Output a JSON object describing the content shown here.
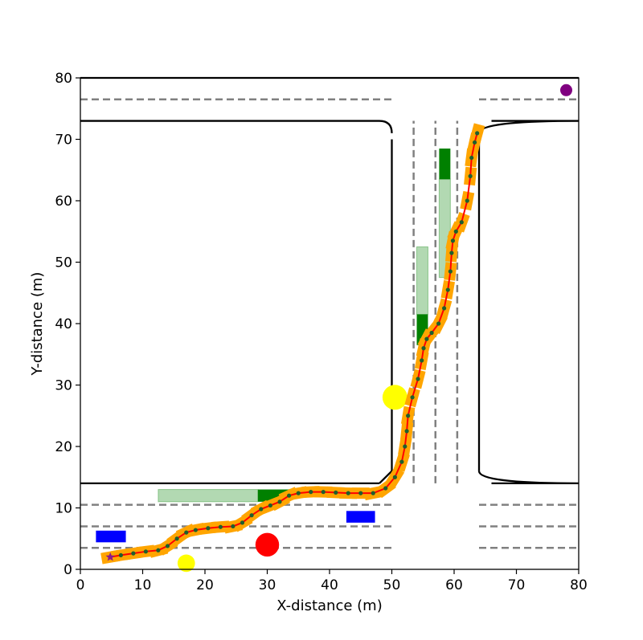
{
  "chart_data": {
    "type": "scatter",
    "title": "",
    "xlabel": "X-distance (m)",
    "ylabel": "Y-distance (m)",
    "xlim": [
      0,
      80
    ],
    "ylim": [
      0,
      80
    ],
    "xticks": [
      "0",
      "10",
      "20",
      "30",
      "40",
      "50",
      "60",
      "70",
      "80"
    ],
    "yticks": [
      "0",
      "10",
      "20",
      "30",
      "40",
      "50",
      "60",
      "70",
      "80"
    ],
    "grid": false,
    "legend": "none",
    "road_edges": [
      {
        "points": [
          [
            0,
            73
          ],
          [
            48,
            73
          ]
        ],
        "corner": [
          50,
          71
        ]
      },
      {
        "points": [
          [
            50,
            70
          ],
          [
            50,
            16
          ]
        ],
        "corner": [
          48,
          14
        ]
      },
      {
        "points": [
          [
            0,
            14
          ],
          [
            48,
            14
          ]
        ]
      },
      {
        "points": [
          [
            64,
            70
          ],
          [
            64,
            16
          ]
        ]
      },
      {
        "points": [
          [
            66,
            73
          ],
          [
            80,
            73
          ]
        ],
        "corner": [
          64,
          71
        ]
      },
      {
        "points": [
          [
            66,
            14
          ],
          [
            80,
            14
          ]
        ],
        "corner": [
          64,
          16
        ]
      },
      {
        "points": [
          [
            0,
            80
          ],
          [
            80,
            80
          ]
        ]
      }
    ],
    "lane_dividers": [
      {
        "points": [
          [
            0,
            76.5
          ],
          [
            50,
            76.5
          ]
        ]
      },
      {
        "points": [
          [
            64,
            76.5
          ],
          [
            80,
            76.5
          ]
        ]
      },
      {
        "points": [
          [
            0,
            10.5
          ],
          [
            50,
            10.5
          ]
        ]
      },
      {
        "points": [
          [
            64,
            10.5
          ],
          [
            80,
            10.5
          ]
        ]
      },
      {
        "points": [
          [
            0,
            7
          ],
          [
            50,
            7
          ]
        ]
      },
      {
        "points": [
          [
            64,
            7
          ],
          [
            80,
            7
          ]
        ]
      },
      {
        "points": [
          [
            0,
            3.5
          ],
          [
            50,
            3.5
          ]
        ]
      },
      {
        "points": [
          [
            64,
            3.5
          ],
          [
            80,
            3.5
          ]
        ]
      },
      {
        "points": [
          [
            53.5,
            14
          ],
          [
            53.5,
            73
          ]
        ]
      },
      {
        "points": [
          [
            57,
            14
          ],
          [
            57,
            73
          ]
        ]
      },
      {
        "points": [
          [
            60.5,
            14
          ],
          [
            60.5,
            73
          ]
        ]
      }
    ],
    "vehicles_blue": [
      {
        "x0": 2.5,
        "x1": 7.3,
        "y0": 4.4,
        "y1": 6.3
      },
      {
        "x0": 42.7,
        "x1": 47.3,
        "y0": 7.6,
        "y1": 9.5
      }
    ],
    "vehicles_green": [
      {
        "x0": 28.5,
        "x1": 33.5,
        "y0": 11.0,
        "y1": 13.0
      },
      {
        "x0": 54.0,
        "x1": 55.8,
        "y0": 36.5,
        "y1": 41.5
      },
      {
        "x0": 57.6,
        "x1": 59.4,
        "y0": 63.5,
        "y1": 68.5
      }
    ],
    "predictions_green": [
      {
        "x0": 12.5,
        "x1": 28.5,
        "y0": 11.0,
        "y1": 13.0
      },
      {
        "x0": 54.0,
        "x1": 55.8,
        "y0": 41.5,
        "y1": 52.5
      },
      {
        "x0": 57.6,
        "x1": 59.4,
        "y0": 47.5,
        "y1": 63.5
      }
    ],
    "obstacles": [
      {
        "x": 30,
        "y": 4,
        "r": 1.9,
        "color": "#ff0000"
      },
      {
        "x": 17,
        "y": 1,
        "r": 1.4,
        "color": "#ffff00"
      },
      {
        "x": 50.5,
        "y": 28,
        "r": 2.0,
        "color": "#ffff00"
      }
    ],
    "goal": {
      "x": 78,
      "y": 78,
      "color": "#800080"
    },
    "start": {
      "x": 4.8,
      "y": 2.0
    },
    "trajectory": {
      "x": [
        4.8,
        6.5,
        8.5,
        10.5,
        12.5,
        14.0,
        15.5,
        17.0,
        18.5,
        20.5,
        22.5,
        24.5,
        26.0,
        27.5,
        29.0,
        30.5,
        32.0,
        33.5,
        35.0,
        37.0,
        39.0,
        41.0,
        43.0,
        45.0,
        47.0,
        49.0,
        50.5,
        51.6,
        52.1,
        52.4,
        52.6,
        53.3,
        54.2,
        54.8,
        55.1,
        55.6,
        56.4,
        57.5,
        58.4,
        59.0,
        59.4,
        59.6,
        59.8,
        60.3,
        61.2,
        62.1,
        62.6,
        62.8,
        63.3,
        63.7
      ],
      "y": [
        2.0,
        2.3,
        2.6,
        2.9,
        3.1,
        3.8,
        5.0,
        6.0,
        6.4,
        6.7,
        6.9,
        7.0,
        7.6,
        8.8,
        9.8,
        10.4,
        11.0,
        12.0,
        12.4,
        12.6,
        12.6,
        12.5,
        12.4,
        12.4,
        12.4,
        13.2,
        15.0,
        17.5,
        20.0,
        22.5,
        25.0,
        28.0,
        31.0,
        34.0,
        36.0,
        37.5,
        38.5,
        40.0,
        42.5,
        45.5,
        48.5,
        51.5,
        53.5,
        55.0,
        56.5,
        60.0,
        64.0,
        67.0,
        69.5,
        71.0
      ],
      "line_color": "#ff0000",
      "waypoint_color": "#1f5f2f",
      "footprint_color": "#ffa500"
    }
  }
}
